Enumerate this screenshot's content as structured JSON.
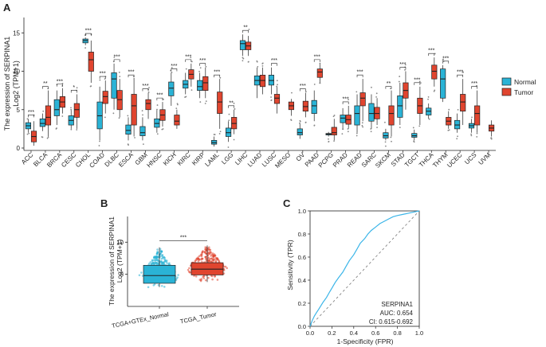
{
  "panels": {
    "a": "A",
    "b": "B",
    "c": "C"
  },
  "colors": {
    "normal": "#2ab3d6",
    "tumor": "#e0452f",
    "roc": "#3bb5e8",
    "diag": "#777777"
  },
  "chart_data": [
    {
      "type": "box",
      "panel": "A",
      "title": "",
      "ylabel_line1": "The expression of SERPINA1",
      "ylabel_line2": "Log2 (TPM+1)",
      "ylim": [
        0,
        17
      ],
      "yticks": [
        0,
        5,
        10,
        15
      ],
      "legend": {
        "title": "",
        "entries": [
          "Normal",
          "Tumor"
        ],
        "placement": "right"
      },
      "categories": [
        "ACC",
        "BLCA",
        "BRCA",
        "CESC",
        "CHOL",
        "COAD",
        "DLBC",
        "ESCA",
        "GBM",
        "HNSC",
        "KICH",
        "KIRC",
        "KIRP",
        "LAML",
        "LGG",
        "LIHC",
        "LUAD",
        "LUSC",
        "MESO",
        "OV",
        "PAAD",
        "PCPG",
        "PRAD",
        "READ",
        "SARC",
        "SKCM",
        "STAD",
        "TGCT",
        "THCA",
        "THYM",
        "UCEC",
        "UCS",
        "UVM"
      ],
      "significance": [
        "***",
        "**",
        "***",
        "*",
        "***",
        "***",
        "***",
        "***",
        "***",
        "***",
        "***",
        "***",
        "***",
        "***",
        "**",
        "**",
        "",
        "***",
        "",
        "***",
        "***",
        "",
        "***",
        "***",
        "",
        "**",
        "***",
        "***",
        "***",
        "***",
        "***",
        "***",
        ""
      ],
      "series": [
        {
          "name": "Normal",
          "boxes": [
            [
              2.0,
              2.5,
              2.9,
              3.3,
              3.8
            ],
            [
              2.2,
              2.8,
              3.2,
              3.8,
              4.5
            ],
            [
              3.0,
              4.2,
              5.0,
              6.3,
              7.5
            ],
            [
              2.5,
              3.0,
              3.6,
              4.2,
              5.0
            ],
            [
              13.4,
              13.7,
              14.0,
              14.2,
              14.4
            ],
            [
              1.0,
              2.5,
              4.2,
              6.0,
              8.0
            ],
            [
              5.0,
              6.5,
              9.0,
              9.8,
              11.0
            ],
            [
              1.0,
              1.8,
              2.3,
              3.0,
              4.0
            ],
            [
              1.0,
              1.6,
              2.0,
              2.8,
              4.0
            ],
            [
              2.0,
              2.7,
              3.2,
              3.8,
              5.0
            ],
            [
              5.5,
              6.8,
              7.8,
              8.6,
              9.8
            ],
            [
              7.0,
              7.8,
              8.3,
              8.8,
              9.8
            ],
            [
              6.5,
              7.5,
              8.0,
              8.8,
              9.8
            ],
            [
              0.2,
              0.5,
              0.7,
              1.0,
              1.5
            ],
            [
              0.8,
              1.5,
              2.0,
              2.6,
              3.5
            ],
            [
              12.0,
              12.8,
              13.6,
              14.0,
              14.8
            ],
            [
              6.5,
              8.2,
              8.8,
              9.4,
              10.5
            ],
            [
              7.0,
              8.2,
              8.8,
              9.5,
              10.5
            ],
            null,
            [
              1.2,
              1.7,
              2.0,
              2.5,
              3.2
            ],
            [
              3.5,
              4.5,
              5.5,
              6.2,
              7.5
            ],
            [
              1.5,
              1.7,
              1.8,
              1.9,
              2.1
            ],
            [
              2.5,
              3.3,
              3.9,
              4.3,
              5.2
            ],
            [
              2.0,
              3.0,
              4.5,
              5.5,
              7.0
            ],
            [
              2.5,
              3.5,
              4.5,
              5.8,
              7.0
            ],
            [
              1.0,
              1.3,
              1.6,
              2.0,
              2.5
            ],
            [
              3.0,
              4.0,
              5.5,
              6.8,
              8.5
            ],
            [
              1.0,
              1.4,
              1.6,
              1.9,
              2.4
            ],
            [
              3.8,
              4.3,
              4.8,
              5.2,
              5.8
            ],
            [
              6.0,
              6.5,
              9.0,
              10.3,
              10.8
            ],
            [
              2.0,
              2.5,
              3.0,
              3.6,
              4.5
            ],
            [
              2.0,
              2.6,
              2.9,
              3.2,
              3.8
            ],
            null
          ]
        },
        {
          "name": "Tumor",
          "boxes": [
            [
              0.3,
              0.8,
              1.5,
              2.2,
              3.5
            ],
            [
              1.5,
              3.0,
              4.0,
              5.5,
              7.5
            ],
            [
              4.5,
              5.3,
              6.0,
              6.7,
              7.8
            ],
            [
              2.5,
              4.0,
              5.0,
              5.8,
              7.0
            ],
            [
              8.5,
              10.0,
              11.5,
              12.5,
              14.0
            ],
            [
              4.5,
              5.8,
              6.7,
              7.4,
              8.8
            ],
            [
              4.0,
              5.0,
              6.3,
              7.5,
              9.0
            ],
            [
              1.5,
              3.0,
              5.5,
              7.0,
              9.0
            ],
            [
              3.8,
              5.0,
              5.8,
              6.3,
              7.2
            ],
            [
              2.8,
              3.6,
              4.3,
              5.0,
              6.0
            ],
            [
              2.5,
              3.0,
              3.5,
              4.3,
              5.0
            ],
            [
              8.0,
              9.0,
              9.6,
              10.2,
              11.0
            ],
            [
              6.5,
              7.5,
              8.5,
              9.3,
              10.5
            ],
            [
              2.5,
              4.5,
              6.0,
              7.3,
              9.0
            ],
            [
              1.8,
              2.5,
              3.2,
              4.0,
              5.0
            ],
            [
              12.0,
              12.8,
              13.3,
              13.8,
              14.6
            ],
            [
              7.0,
              8.0,
              8.8,
              9.5,
              10.5
            ],
            [
              4.5,
              5.8,
              6.5,
              7.0,
              8.0
            ],
            [
              4.2,
              5.0,
              5.5,
              6.0,
              6.4
            ],
            [
              4.0,
              4.8,
              5.4,
              6.1,
              7.2
            ],
            [
              8.5,
              9.2,
              9.9,
              10.3,
              11.0
            ],
            [
              1.0,
              1.7,
              2.0,
              2.7,
              3.8
            ],
            [
              2.5,
              3.1,
              3.7,
              4.3,
              5.5
            ],
            [
              3.5,
              5.5,
              6.5,
              7.2,
              9.0
            ],
            [
              3.0,
              3.8,
              4.5,
              5.3,
              6.5
            ],
            [
              1.5,
              3.0,
              4.5,
              5.5,
              7.5
            ],
            [
              5.0,
              6.5,
              7.5,
              8.5,
              10.0
            ],
            [
              3.0,
              4.5,
              5.5,
              6.5,
              8.0
            ],
            [
              8.0,
              9.0,
              10.0,
              10.8,
              11.8
            ],
            [
              2.5,
              3.0,
              3.5,
              4.0,
              4.8
            ],
            [
              3.0,
              4.8,
              6.0,
              7.0,
              9.0
            ],
            [
              2.0,
              3.0,
              4.5,
              5.5,
              7.5
            ],
            [
              1.5,
              2.2,
              2.6,
              3.0,
              3.6
            ]
          ]
        }
      ]
    },
    {
      "type": "box",
      "panel": "B",
      "ylabel_line1": "The expression of SERPINA1",
      "ylabel_line2": "Log2 (TPM+1)",
      "ylim": [
        0,
        14
      ],
      "yticks": [
        5,
        10
      ],
      "categories": [
        "TCGA+GTEx_Normal",
        "TCGA_Tumor"
      ],
      "significance": "***",
      "boxes": [
        [
          3.0,
          3.6,
          4.8,
          6.4,
          9.2
        ],
        [
          3.8,
          4.9,
          5.8,
          6.8,
          9.5
        ]
      ]
    },
    {
      "type": "line",
      "panel": "C",
      "xlabel": "1-Specificity (FPR)",
      "ylabel": "Sensitivity (TPR)",
      "xlim": [
        0,
        1
      ],
      "ylim": [
        0,
        1
      ],
      "xticks": [
        "0.0",
        "0.2",
        "0.4",
        "0.6",
        "0.8",
        "1.0"
      ],
      "yticks": [
        "0.0",
        "0.2",
        "0.4",
        "0.6",
        "0.8",
        "1.0"
      ],
      "annotation": {
        "name": "SERPINA1",
        "auc": "AUC: 0.654",
        "ci": "CI: 0.615-0.692"
      },
      "roc": {
        "x": [
          0,
          0.02,
          0.04,
          0.06,
          0.08,
          0.1,
          0.12,
          0.15,
          0.18,
          0.2,
          0.23,
          0.26,
          0.3,
          0.33,
          0.36,
          0.4,
          0.43,
          0.46,
          0.5,
          0.53,
          0.56,
          0.6,
          0.64,
          0.68,
          0.72,
          0.76,
          0.8,
          0.85,
          0.9,
          0.95,
          1.0
        ],
        "y": [
          0,
          0.05,
          0.09,
          0.12,
          0.15,
          0.18,
          0.21,
          0.25,
          0.3,
          0.33,
          0.38,
          0.42,
          0.47,
          0.52,
          0.57,
          0.62,
          0.67,
          0.72,
          0.76,
          0.8,
          0.83,
          0.86,
          0.89,
          0.91,
          0.93,
          0.95,
          0.96,
          0.97,
          0.98,
          0.99,
          1.0
        ]
      }
    }
  ]
}
